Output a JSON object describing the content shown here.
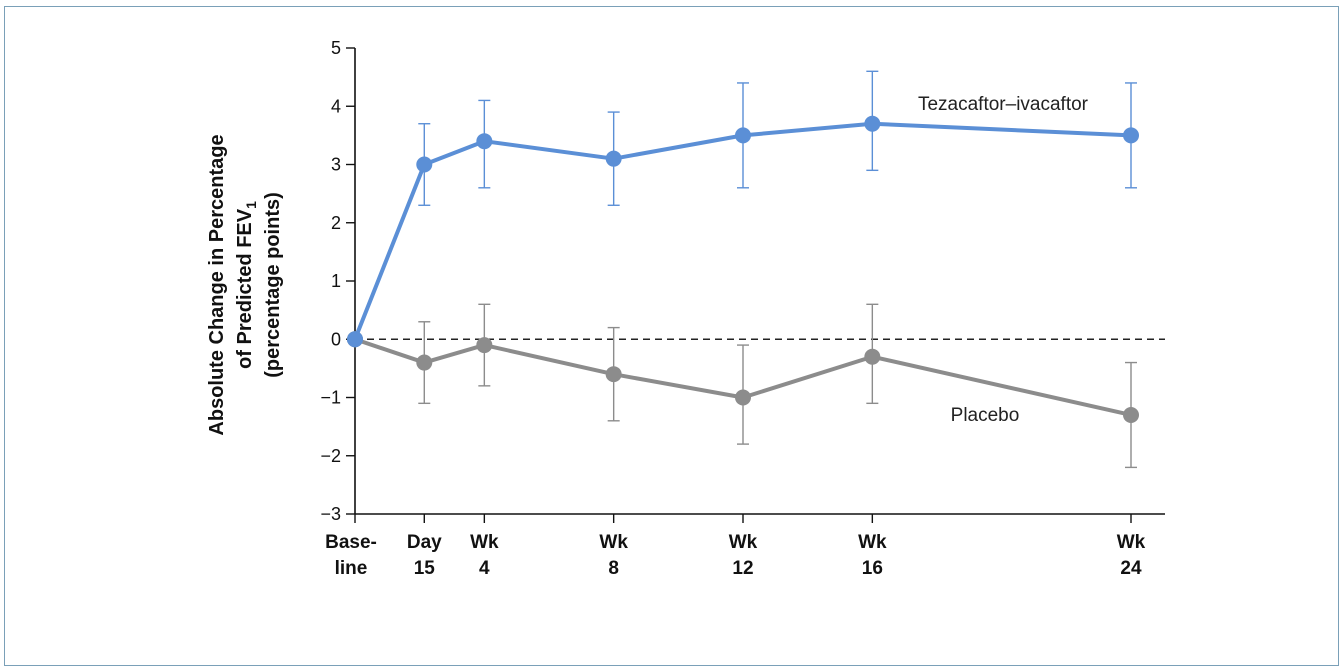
{
  "chart_data": {
    "type": "line",
    "title": "",
    "ylabel_lines": [
      "Absolute Change in Percentage",
      "of Predicted FEV",
      "(percentage points)"
    ],
    "ylabel_subscript": "1",
    "ylim": [
      -3,
      5
    ],
    "yticks": [
      5,
      4,
      3,
      2,
      1,
      0,
      -1,
      -2,
      -3
    ],
    "ytick_labels": [
      "5",
      "4",
      "3",
      "2",
      "1",
      "0",
      "−1",
      "−2",
      "−3"
    ],
    "x": [
      0,
      15,
      28,
      56,
      84,
      112,
      168
    ],
    "x_labels": [
      [
        "Base-",
        "line"
      ],
      [
        "Day",
        "15"
      ],
      [
        "Wk",
        "4"
      ],
      [
        "Wk",
        "8"
      ],
      [
        "Wk",
        "12"
      ],
      [
        "Wk",
        "16"
      ],
      [
        "Wk",
        "24"
      ]
    ],
    "reference_line": 0,
    "series": [
      {
        "name": "Tezacaftor–ivacaftor",
        "color": "#5b8fd6",
        "values": [
          0,
          3.0,
          3.4,
          3.1,
          3.5,
          3.7,
          3.5
        ],
        "error_low": [
          0,
          2.3,
          2.6,
          2.3,
          2.6,
          2.9,
          2.6
        ],
        "error_high": [
          0,
          3.7,
          4.1,
          3.9,
          4.4,
          4.6,
          4.4
        ]
      },
      {
        "name": "Placebo",
        "color": "#8c8c8c",
        "values": [
          0,
          -0.4,
          -0.1,
          -0.6,
          -1.0,
          -0.3,
          -1.3
        ],
        "error_low": [
          0,
          -1.1,
          -0.8,
          -1.4,
          -1.8,
          -1.1,
          -2.2
        ],
        "error_high": [
          0,
          0.3,
          0.6,
          0.2,
          -0.1,
          0.6,
          -0.4
        ]
      }
    ]
  }
}
